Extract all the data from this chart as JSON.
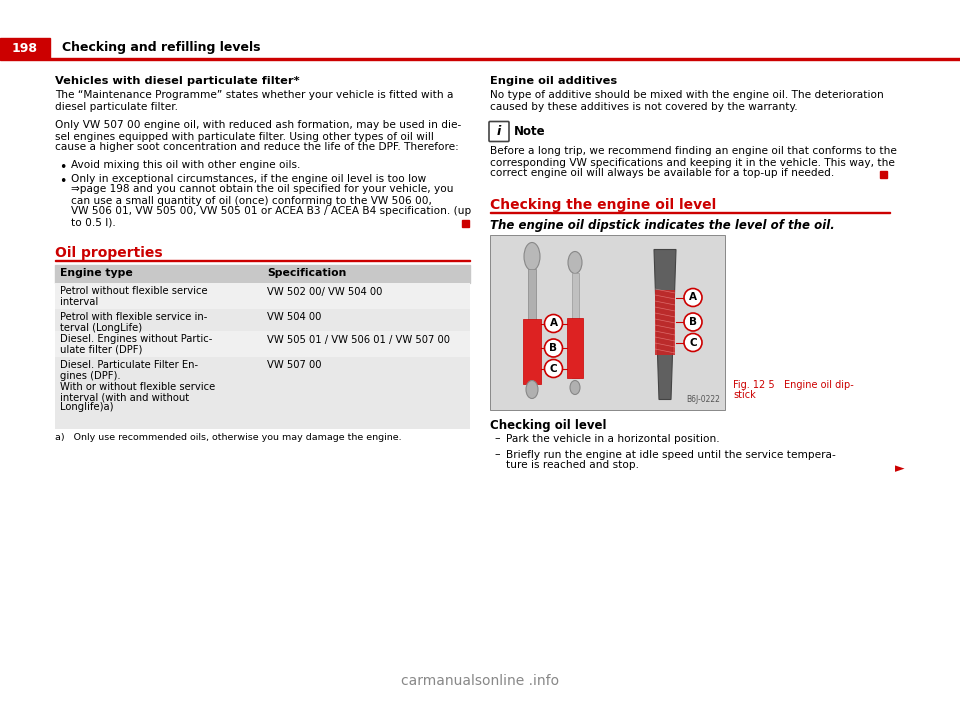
{
  "page_num": "198",
  "header_title": "Checking and refilling levels",
  "header_bg": "#cc0000",
  "header_text_color": "#ffffff",
  "bg_color": "#ffffff",
  "text_color": "#000000",
  "red_color": "#cc0000",
  "section1_bold": "Vehicles with diesel particulate filter*",
  "section1_p1": "The “Maintenance Programme” states whether your vehicle is fitted with a\ndiesel particulate filter.",
  "section1_p2": "Only VW 507 00 engine oil, with reduced ash formation, may be used in die-\nsel engines equipped with particulate filter. Using other types of oil will\ncause a higher soot concentration and reduce the life of the DPF. Therefore:",
  "section1_bullets": [
    "Avoid mixing this oil with other engine oils.",
    "Only in exceptional circumstances, if the engine oil level is too low\n⇒page 198 and you cannot obtain the oil specified for your vehicle, you\ncan use a small quantity of oil (once) conforming to the VW 506 00,\nVW 506 01, VW 505 00, VW 505 01 or ACEA B3 / ACEA B4 specification. (up\nto 0.5 l)."
  ],
  "oil_section_title": "Oil properties",
  "table_headers": [
    "Engine type",
    "Specification"
  ],
  "table_rows": [
    [
      "Petrol without flexible service\ninterval",
      "VW 502 00/ VW 504 00"
    ],
    [
      "Petrol with flexible service in-\nterval (LongLife)",
      "VW 504 00"
    ],
    [
      "Diesel. Engines without Partic-\nulate filter (DPF)",
      "VW 505 01 / VW 506 01 / VW 507 00"
    ],
    [
      "Diesel. Particulate Filter En-\ngines (DPF).\nWith or without flexible service\ninterval (with and without\nLonglife)a)",
      "VW 507 00"
    ]
  ],
  "table_footnote": "a)   Only use recommended oils, otherwise you may damage the engine.",
  "table_row_even_bg": "#e8e8e8",
  "table_row_odd_bg": "#f0f0f0",
  "table_header_bg": "#c8c8c8",
  "right_section2_title": "Engine oil additives",
  "right_section2_p": "No type of additive should be mixed with the engine oil. The deterioration\ncaused by these additives is not covered by the warranty.",
  "note_label": "Note",
  "note_text": "Before a long trip, we recommend finding an engine oil that conforms to the\ncorresponding VW specifications and keeping it in the vehicle. This way, the\ncorrect engine oil will always be available for a top-up if needed.",
  "right_section3_title": "Checking the engine oil level",
  "right_section3_italic": "The engine oil dipstick indicates the level of the oil.",
  "fig_caption_line1": "Fig. 12 5   Engine oil dip-",
  "fig_caption_line2": "stick",
  "checking_title": "Checking oil level",
  "checking_bullets": [
    "Park the vehicle in a horizontal position.",
    "Briefly run the engine at idle speed until the service tempera-\nture is reached and stop."
  ],
  "watermark": "carmanualsonline .info"
}
